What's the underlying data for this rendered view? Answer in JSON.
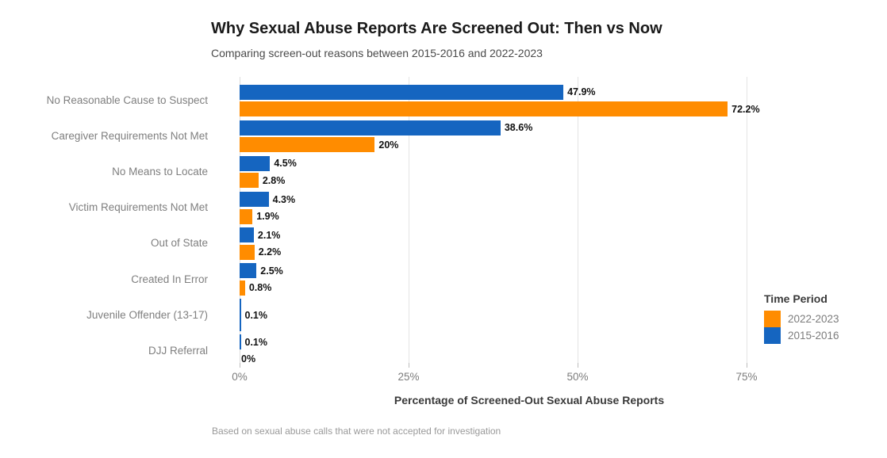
{
  "header": {
    "title": "Why Sexual Abuse Reports Are Screened Out: Then vs Now",
    "subtitle": "Comparing screen-out reasons between 2015-2016 and 2022-2023"
  },
  "chart_data": {
    "type": "bar",
    "orientation": "horizontal",
    "title": "Why Sexual Abuse Reports Are Screened Out: Then vs Now",
    "subtitle": "Comparing screen-out reasons between 2015-2016 and 2022-2023",
    "categories": [
      "No Reasonable Cause to Suspect",
      "Caregiver Requirements Not Met",
      "No Means to Locate",
      "Victim Requirements Not Met",
      "Out of State",
      "Created In Error",
      "Juvenile Offender (13-17)",
      "DJJ Referral"
    ],
    "series": [
      {
        "name": "2022-2023",
        "color": "#FF8C00",
        "values": [
          72.2,
          20,
          2.8,
          1.9,
          2.2,
          0.8,
          null,
          0
        ],
        "labels": [
          "72.2%",
          "20%",
          "2.8%",
          "1.9%",
          "2.2%",
          "0.8%",
          null,
          "0%"
        ]
      },
      {
        "name": "2015-2016",
        "color": "#1565C0",
        "values": [
          47.9,
          38.6,
          4.5,
          4.3,
          2.1,
          2.5,
          0.1,
          0.1
        ],
        "labels": [
          "47.9%",
          "38.6%",
          "4.5%",
          "4.3%",
          "2.1%",
          "2.5%",
          "0.1%",
          "0.1%"
        ]
      }
    ],
    "row_order_top_to_bottom": [
      "2015-2016",
      "2022-2023"
    ],
    "xlabel": "Percentage of Screened-Out Sexual Abuse Reports",
    "ylabel": "",
    "xlim": [
      0,
      77.2
    ],
    "x_ticks": [
      {
        "value": 0,
        "label": "0%"
      },
      {
        "value": 25,
        "label": "25%"
      },
      {
        "value": 50,
        "label": "50%"
      },
      {
        "value": 75,
        "label": "75%"
      }
    ],
    "grid": "vertical",
    "legend": {
      "title": "Time Period",
      "position": "right",
      "entries": [
        {
          "label": "2022-2023",
          "color": "#FF8C00"
        },
        {
          "label": "2015-2016",
          "color": "#1565C0"
        }
      ]
    },
    "caption": "Based on sexual abuse calls that were not accepted for investigation"
  }
}
